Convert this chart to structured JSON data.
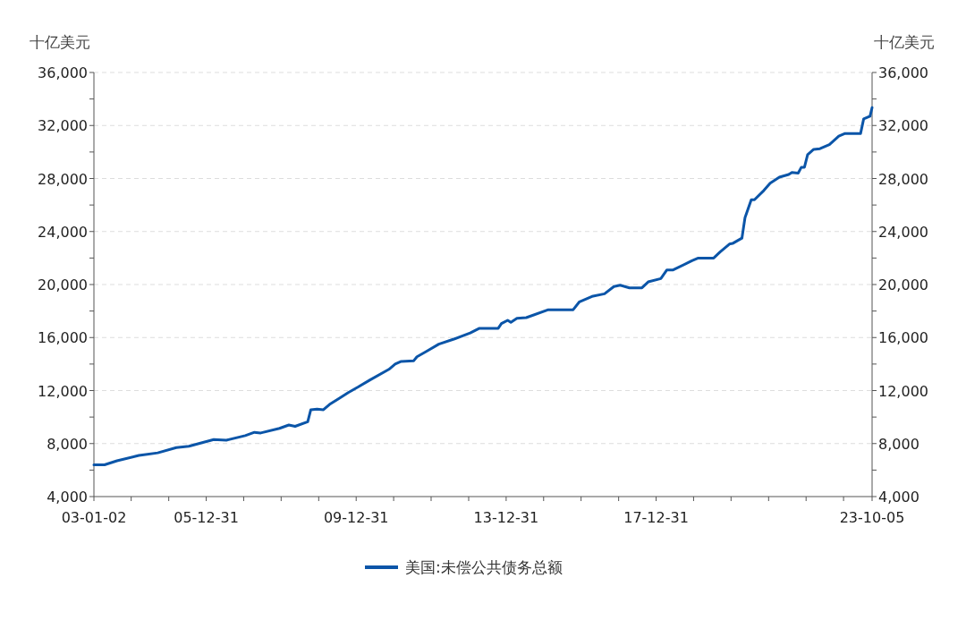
{
  "chart_data": {
    "type": "line",
    "ylabel": "十亿美元",
    "y2label": "十亿美元",
    "x": [
      "2003-01-02",
      "2003-04",
      "2003-08",
      "2004-03",
      "2004-09",
      "2005-03",
      "2005-07",
      "2006-03",
      "2006-07",
      "2007-01",
      "2007-04",
      "2007-06",
      "2007-12",
      "2008-03",
      "2008-05",
      "2008-09",
      "2008-10",
      "2008-12",
      "2009-02",
      "2009-04",
      "2009-07",
      "2009-10",
      "2010-01",
      "2010-05",
      "2010-11",
      "2011-01",
      "2011-03",
      "2011-07",
      "2011-08",
      "2011-11",
      "2012-03",
      "2012-08",
      "2013-01",
      "2013-04",
      "2013-10",
      "2013-11",
      "2014-01",
      "2014-02",
      "2014-04",
      "2014-07",
      "2015-02",
      "2015-10",
      "2015-12",
      "2016-04",
      "2016-08",
      "2016-11",
      "2017-01",
      "2017-04",
      "2017-08",
      "2017-10",
      "2018-02",
      "2018-04",
      "2018-06",
      "2018-12",
      "2019-02",
      "2019-07",
      "2019-09",
      "2019-12",
      "2020-01",
      "2020-04",
      "2020-05",
      "2020-07",
      "2020-08",
      "2020-11",
      "2021-01",
      "2021-04",
      "2021-07",
      "2021-08",
      "2021-10",
      "2021-11",
      "2021-12",
      "2022-01",
      "2022-03",
      "2022-05",
      "2022-08",
      "2022-11",
      "2023-01",
      "2023-06",
      "2023-07",
      "2023-09",
      "2023-10-05"
    ],
    "series": [
      {
        "name": "美国:未偿公共债务总额",
        "color": "#0b55a8",
        "values": [
          6400,
          6400,
          6700,
          7100,
          7300,
          7700,
          7800,
          8300,
          8250,
          8600,
          8850,
          8800,
          9150,
          9400,
          9300,
          9650,
          10550,
          10600,
          10550,
          10950,
          11400,
          11850,
          12250,
          12800,
          13600,
          14000,
          14200,
          14250,
          14550,
          14950,
          15500,
          15900,
          16350,
          16700,
          16700,
          17050,
          17300,
          17150,
          17450,
          17500,
          18100,
          18100,
          18700,
          19100,
          19300,
          19850,
          19950,
          19750,
          19750,
          20200,
          20450,
          21100,
          21100,
          21800,
          22000,
          22000,
          22450,
          23050,
          23100,
          23500,
          25050,
          26400,
          26400,
          27100,
          27650,
          28100,
          28300,
          28450,
          28400,
          28850,
          28850,
          29800,
          30200,
          30250,
          30550,
          31200,
          31400,
          31400,
          32500,
          32700,
          33350
        ]
      }
    ],
    "xlim": [
      "2003-01-02",
      "2023-10-05"
    ],
    "xticks": [
      {
        "value": "2003-01-02",
        "label": "03-01-02"
      },
      {
        "value": "2003-12-31",
        "label": null
      },
      {
        "value": "2004-12-31",
        "label": null
      },
      {
        "value": "2005-12-31",
        "label": "05-12-31"
      },
      {
        "value": "2006-12-31",
        "label": null
      },
      {
        "value": "2007-12-31",
        "label": null
      },
      {
        "value": "2008-12-31",
        "label": null
      },
      {
        "value": "2009-12-31",
        "label": "09-12-31"
      },
      {
        "value": "2010-12-31",
        "label": null
      },
      {
        "value": "2011-12-31",
        "label": null
      },
      {
        "value": "2012-12-31",
        "label": null
      },
      {
        "value": "2013-12-31",
        "label": "13-12-31"
      },
      {
        "value": "2014-12-31",
        "label": null
      },
      {
        "value": "2015-12-31",
        "label": null
      },
      {
        "value": "2016-12-31",
        "label": null
      },
      {
        "value": "2017-12-31",
        "label": "17-12-31"
      },
      {
        "value": "2018-12-31",
        "label": null
      },
      {
        "value": "2019-12-31",
        "label": null
      },
      {
        "value": "2020-12-31",
        "label": null
      },
      {
        "value": "2021-12-31",
        "label": null
      },
      {
        "value": "2022-12-31",
        "label": null
      },
      {
        "value": "2023-10-05",
        "label": "23-10-05"
      }
    ],
    "ylim": [
      4000,
      36000
    ],
    "yticks": [
      {
        "value": 4000,
        "label": "4,000"
      },
      {
        "value": 6000,
        "label": null
      },
      {
        "value": 8000,
        "label": "8,000"
      },
      {
        "value": 10000,
        "label": null
      },
      {
        "value": 12000,
        "label": "12,000"
      },
      {
        "value": 14000,
        "label": null
      },
      {
        "value": 16000,
        "label": "16,000"
      },
      {
        "value": 18000,
        "label": null
      },
      {
        "value": 20000,
        "label": "20,000"
      },
      {
        "value": 22000,
        "label": null
      },
      {
        "value": 24000,
        "label": "24,000"
      },
      {
        "value": 26000,
        "label": null
      },
      {
        "value": 28000,
        "label": "28,000"
      },
      {
        "value": 30000,
        "label": null
      },
      {
        "value": 32000,
        "label": "32,000"
      },
      {
        "value": 34000,
        "label": null
      },
      {
        "value": 36000,
        "label": "36,000"
      }
    ],
    "y2lim": [
      4000,
      36000
    ],
    "y2ticks": [
      {
        "value": 4000,
        "label": "4,000"
      },
      {
        "value": 6000,
        "label": null
      },
      {
        "value": 8000,
        "label": "8,000"
      },
      {
        "value": 10000,
        "label": null
      },
      {
        "value": 12000,
        "label": "12,000"
      },
      {
        "value": 14000,
        "label": null
      },
      {
        "value": 16000,
        "label": "16,000"
      },
      {
        "value": 18000,
        "label": null
      },
      {
        "value": 20000,
        "label": "20,000"
      },
      {
        "value": 22000,
        "label": null
      },
      {
        "value": 24000,
        "label": "24,000"
      },
      {
        "value": 26000,
        "label": null
      },
      {
        "value": 28000,
        "label": "28,000"
      },
      {
        "value": 30000,
        "label": null
      },
      {
        "value": 32000,
        "label": "32,000"
      },
      {
        "value": 34000,
        "label": null
      },
      {
        "value": 36000,
        "label": "36,000"
      }
    ],
    "grid": "y",
    "legend": "bottom",
    "marker": "none",
    "line_style": "solid"
  }
}
